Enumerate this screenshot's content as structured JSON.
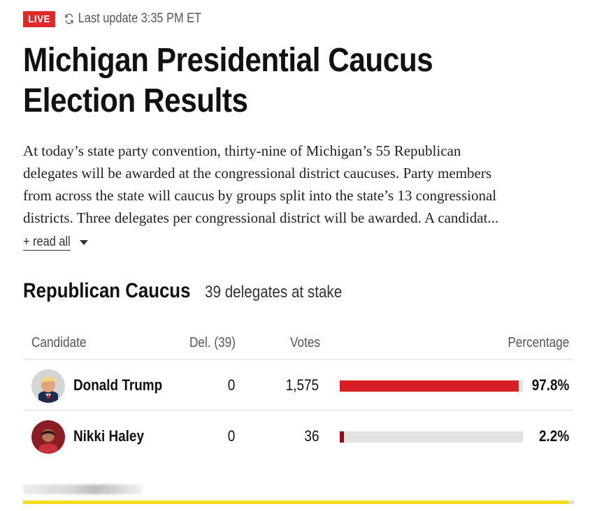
{
  "header": {
    "live_label": "LIVE",
    "last_update": "Last update 3:35 PM ET",
    "title": "Michigan Presidential Caucus Election Results",
    "description": "At today’s state party convention, thirty-nine of Michigan’s 55 Republican\ndelegates will be awarded at the congressional district caucuses. Party members\nfrom across the state will caucus by groups split into the state’s 13 congressional\ndistricts. Three delegates per congressional district will be awarded. A candidat...",
    "read_all": "+ read all",
    "icons": {
      "refresh": "refresh-icon",
      "caret": "chevron-down-icon"
    }
  },
  "section": {
    "title": "Republican Caucus",
    "delegates_text": "39 delegates at stake"
  },
  "table": {
    "columns": [
      "Candidate",
      "Del. (39)",
      "Votes",
      "Percentage"
    ],
    "rows": [
      {
        "name": "Donald Trump",
        "delegates": "0",
        "votes": "1,575",
        "percent": "97.8%",
        "bar_value": 0.978,
        "bar_color": "#d91f26"
      },
      {
        "name": "Nikki Haley",
        "delegates": "0",
        "votes": "36",
        "percent": "2.2%",
        "bar_value": 0.022,
        "bar_color": "#8b1115"
      }
    ]
  },
  "colors": {
    "live": "#e0282b",
    "trump_bar": "#d91f26",
    "footer_accent": "#f5dc20"
  }
}
